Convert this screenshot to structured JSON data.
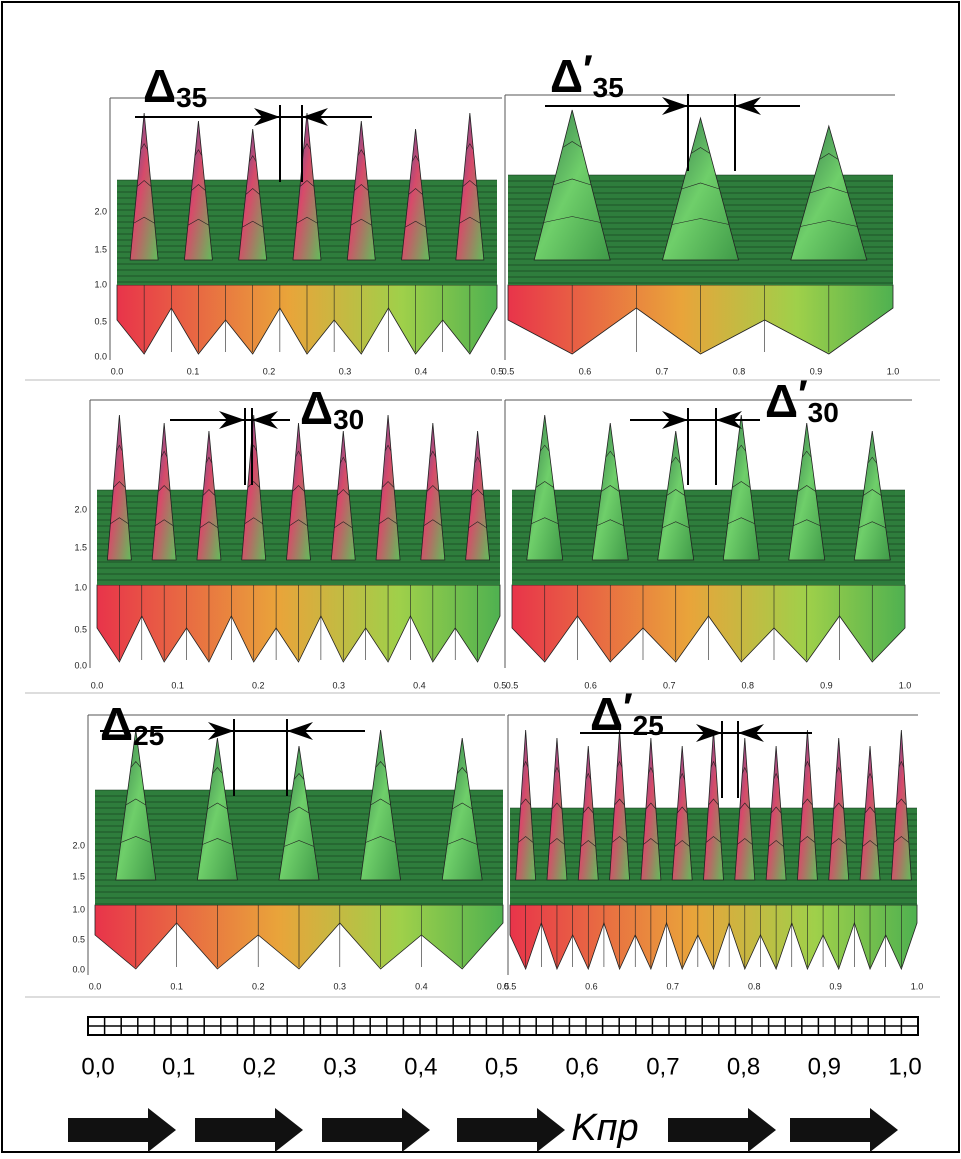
{
  "panels": [
    {
      "symbol": "Δ",
      "subscript": "35",
      "yticks": [
        "0.0",
        "0.5",
        "1.0",
        "1.5",
        "2.0"
      ],
      "xticks": [
        "0.0",
        "0.1",
        "0.2",
        "0.3",
        "0.4",
        "0.5"
      ]
    },
    {
      "symbol": "Δ",
      "prime": "′",
      "subscript": "35",
      "xticks": [
        "0.5",
        "0.6",
        "0.7",
        "0.8",
        "0.9",
        "1.0"
      ]
    },
    {
      "symbol": "Δ",
      "subscript": "30",
      "yticks": [
        "0.0",
        "0.5",
        "1.0",
        "1.5",
        "2.0"
      ],
      "xticks": [
        "0.0",
        "0.1",
        "0.2",
        "0.3",
        "0.4",
        "0.5"
      ]
    },
    {
      "symbol": "Δ",
      "prime": "′",
      "subscript": "30",
      "xticks": [
        "0.5",
        "0.6",
        "0.7",
        "0.8",
        "0.9",
        "1.0"
      ]
    },
    {
      "symbol": "Δ",
      "subscript": "25",
      "yticks": [
        "0.0",
        "0.5",
        "1.0",
        "1.5",
        "2.0"
      ],
      "xticks": [
        "0.0",
        "0.1",
        "0.2",
        "0.3",
        "0.4",
        "0.5"
      ]
    },
    {
      "symbol": "Δ",
      "prime": "′",
      "subscript": "25",
      "xticks": [
        "0.5",
        "0.6",
        "0.7",
        "0.8",
        "0.9",
        "1.0"
      ]
    }
  ],
  "scale": {
    "ticks": [
      "0,0",
      "0,1",
      "0,2",
      "0,3",
      "0,4",
      "0,5",
      "0,6",
      "0,7",
      "0,8",
      "0,9",
      "1,0"
    ],
    "label": "Kпр"
  }
}
